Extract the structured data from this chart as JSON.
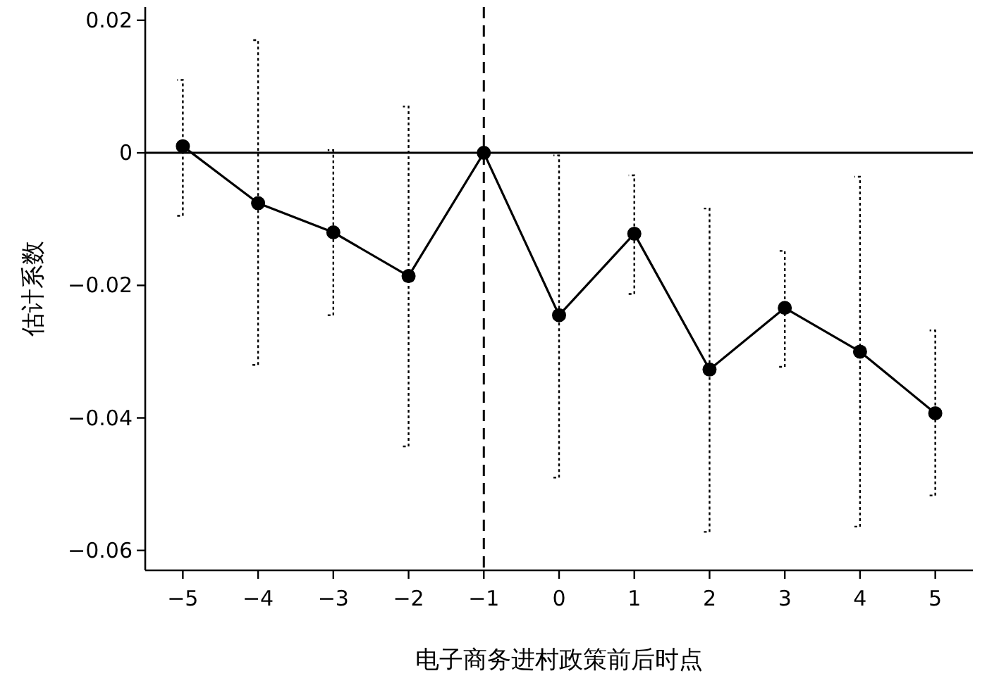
{
  "chart_data": {
    "type": "line",
    "xlabel": "电子商务进村政策前后时点",
    "ylabel": "估计系数",
    "x": [
      -5,
      -4,
      -3,
      -2,
      -1,
      0,
      1,
      2,
      3,
      4,
      5
    ],
    "series": [
      {
        "color": "#000000",
        "marker": "circle",
        "line_style": "solid",
        "values": [
          0.001,
          -0.0076,
          -0.012,
          -0.0186,
          0,
          -0.0245,
          -0.0122,
          -0.0327,
          -0.0234,
          -0.03,
          -0.0393
        ],
        "errors": [
          [
            -0.0095,
            0.011
          ],
          [
            -0.032,
            0.017
          ],
          [
            -0.0245,
            0.0004
          ],
          [
            -0.0443,
            0.007
          ],
          null,
          [
            -0.049,
            -0.0004
          ],
          [
            -0.0213,
            -0.0034
          ],
          [
            -0.0572,
            -0.0084
          ],
          [
            -0.0323,
            -0.0148
          ],
          [
            -0.0564,
            -0.0036
          ],
          [
            -0.0517,
            -0.0268
          ]
        ]
      }
    ],
    "xlim": [
      -5.5,
      5.5
    ],
    "ylim": [
      -0.063,
      0.022
    ],
    "xticks": [
      -5,
      -4,
      -3,
      -2,
      -1,
      0,
      1,
      2,
      3,
      4,
      5
    ],
    "yticks": [
      -0.06,
      -0.04,
      -0.02,
      0,
      0.02
    ],
    "ref_lines": [
      {
        "axis": "x",
        "value": -1,
        "line_style": "dashed"
      },
      {
        "axis": "y",
        "value": 0,
        "line_style": "solid"
      }
    ],
    "grid": false
  }
}
